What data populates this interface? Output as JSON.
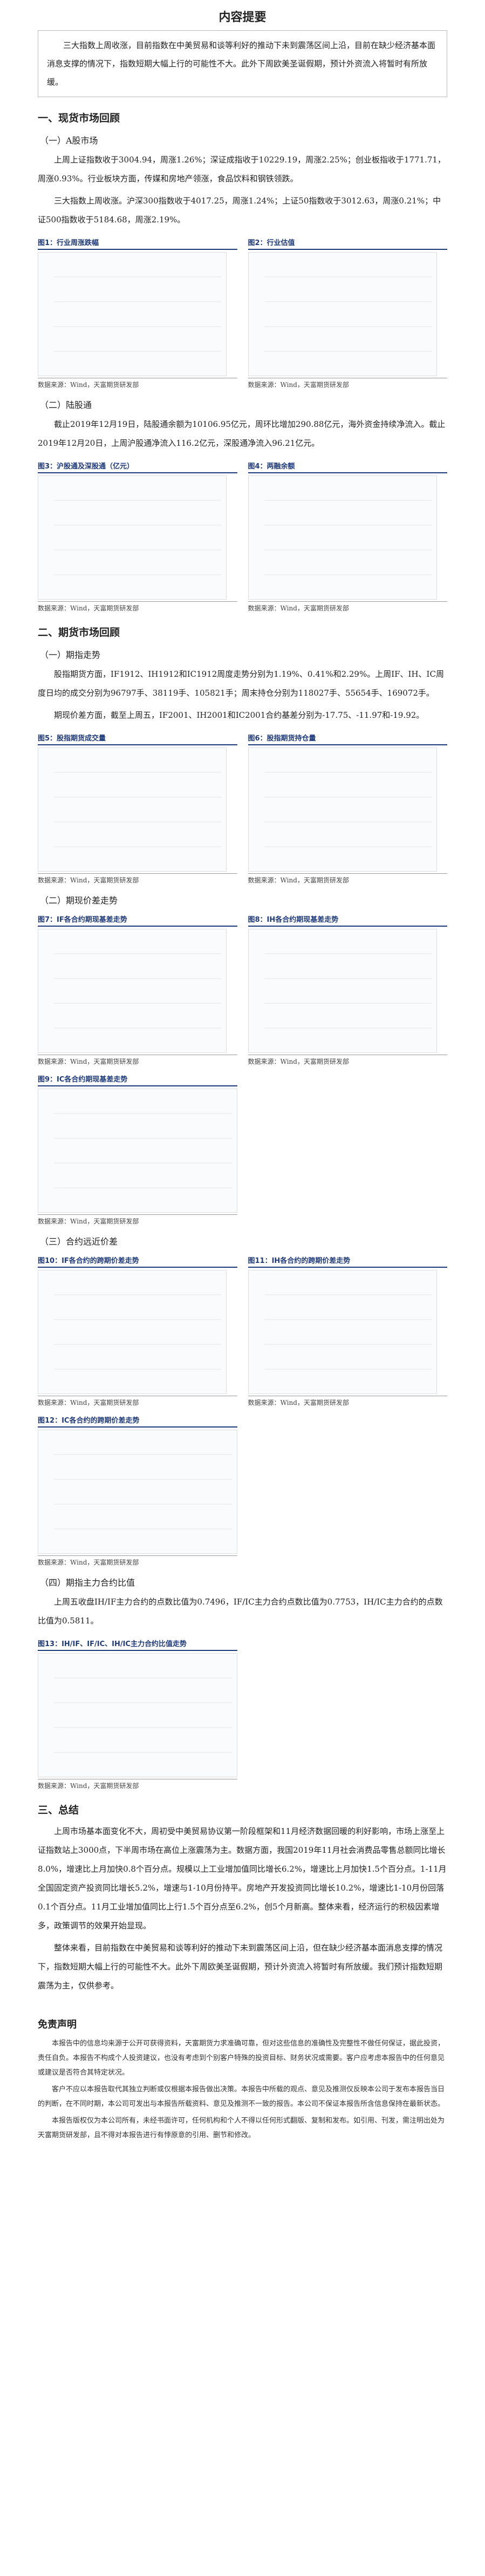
{
  "header": {
    "title": "内容提要"
  },
  "summary": "三大指数上周收涨，目前指数在中美贸易和谈等利好的推动下未到震荡区间上沿，目前在缺少经济基本面消息支撑的情况下，指数短期大幅上行的可能性不大。此外下周欧美圣诞假期，预计外资流入将暂时有所放缓。",
  "blocks": [
    {
      "h1": "一、现货市场回顾"
    },
    {
      "h2": "（一）A股市场"
    },
    {
      "p": "上周上证指数收于3004.94，周涨1.26%；深证成指收于10229.19，周涨2.25%；创业板指收于1771.71，周涨0.93%。行业板块方面，传媒和房地产领涨，食品饮料和钢铁领跌。"
    },
    {
      "p": "三大指数上周收涨。沪深300指数收于4017.25，周涨1.24%；上证50指数收于3012.63，周涨0.21%；中证500指数收于5184.68，周涨2.19%。"
    },
    {
      "figures": [
        {
          "title": "图1：行业周涨跌幅",
          "source": "数据来源：Wind，天富期货研发部"
        },
        {
          "title": "图2：行业估值",
          "source": "数据来源：Wind，天富期货研发部"
        }
      ]
    },
    {
      "h2": "（二）陆股通"
    },
    {
      "p": "截止2019年12月19日，陆股通余额为10106.95亿元，周环比增加290.88亿元，海外资金持续净流入。截止2019年12月20日，上周沪股通净流入116.2亿元，深股通净流入96.21亿元。"
    },
    {
      "figures": [
        {
          "title": "图3：沪股通及深股通（亿元）",
          "source": "数据来源：Wind，天富期货研发部"
        },
        {
          "title": "图4：两融余额",
          "source": "数据来源：Wind，天富期货研发部"
        }
      ]
    },
    {
      "h1": "二、期货市场回顾"
    },
    {
      "h2": "（一）期指走势"
    },
    {
      "p": "股指期货方面，IF1912、IH1912和IC1912周度走势分别为1.19%、0.41%和2.29%。上周IF、IH、IC周度日均的成交分别为96797手、38119手、105821手；周末持仓分别为118027手、55654手、169072手。"
    },
    {
      "p": "期现价差方面，截至上周五，IF2001、IH2001和IC2001合约基差分别为-17.75、-11.97和-19.92。"
    },
    {
      "figures": [
        {
          "title": "图5：股指期货成交量",
          "source": "数据来源：Wind，天富期货研发部"
        },
        {
          "title": "图6：股指期货持仓量",
          "source": "数据来源：Wind，天富期货研发部"
        }
      ]
    },
    {
      "h2": "（二）期现价差走势"
    },
    {
      "figures": [
        {
          "title": "图7：IF各合约期现基差走势",
          "source": "数据来源：Wind，天富期货研发部"
        },
        {
          "title": "图8：IH各合约期现基差走势",
          "source": "数据来源：Wind，天富期货研发部"
        }
      ]
    },
    {
      "figures": [
        {
          "title": "图9：IC各合约期现基差走势",
          "source": "数据来源：Wind，天富期货研发部"
        }
      ]
    },
    {
      "h2": "（三）合约远近价差"
    },
    {
      "figures": [
        {
          "title": "图10：IF各合约的跨期价差走势",
          "source": "数据来源：Wind，天富期货研发部"
        },
        {
          "title": "图11：IH各合约的跨期价差走势",
          "source": "数据来源：Wind，天富期货研发部"
        }
      ]
    },
    {
      "figures": [
        {
          "title": "图12：IC各合约的跨期价差走势",
          "source": "数据来源：Wind，天富期货研发部"
        }
      ]
    },
    {
      "h2": "（四）期指主力合约比值"
    },
    {
      "p": "上周五收盘IH/IF主力合约的点数比值为0.7496，IF/IC主力合约点数比值为0.7753，IH/IC主力合约的点数比值为0.5811。"
    },
    {
      "figures": [
        {
          "title": "图13：IH/IF、IF/IC、IH/IC主力合约比值走势",
          "source": "数据来源：Wind，天富期货研发部"
        }
      ]
    },
    {
      "h1": "三、总结"
    },
    {
      "p": "上周市场基本面变化不大，周初受中美贸易协议第一阶段框架和11月经济数据回暖的利好影响，市场上涨至上证指数站上3000点，下半周市场在高位上涨震荡为主。数据方面，我国2019年11月社会消费品零售总额同比增长8.0%，增速比上月加快0.8个百分点。规模以上工业增加值同比增长6.2%，增速比上月加快1.5个百分点。1-11月全国固定资产投资同比增长5.2%，增速与1-10月份持平。房地产开发投资同比增长10.2%，增速比1-10月份回落0.1个百分点。11月工业增加值同比上行1.5个百分点至6.2%，创5个月新高。整体来看，经济运行的积极因素增多，政策调节的效果开始显现。"
    },
    {
      "p": "整体来看，目前指数在中美贸易和谈等利好的推动下未到震荡区间上沿，但在缺少经济基本面消息支撑的情况下，指数短期大幅上行的可能性不大。此外下周欧美圣诞假期，预计外资流入将暂时有所放缓。我们预计指数短期震荡为主，仅供参考。"
    }
  ],
  "disclaimer": {
    "title": "免责声明",
    "paragraphs": [
      "本报告中的信息均来源于公开可获得资料，天富期货力求准确可靠，但对这些信息的准确性及完整性不做任何保证，据此投资，责任自负。本报告不构成个人投资建议，也没有考虑到个别客户特殊的投资目标、财务状况或需要。客户应考虑本报告中的任何意见或建议是否符合其特定状况。",
      "客户不应以本报告取代其独立判断或仅根据本报告做出决策。本报告中所载的观点、意见及推测仅反映本公司于发布本报告当日的判断，在不同时期，本公司可发出与本报告所载资料、意见及推测不一致的报告。本公司不保证本报告所含信息保持在最新状态。",
      "本报告版权仅为本公司所有，未经书面许可，任何机构和个人不得以任何形式翻版、复制和发布。如引用、刊发，需注明出处为天富期货研发部，且不得对本报告进行有悖原意的引用、删节和修改。"
    ]
  }
}
